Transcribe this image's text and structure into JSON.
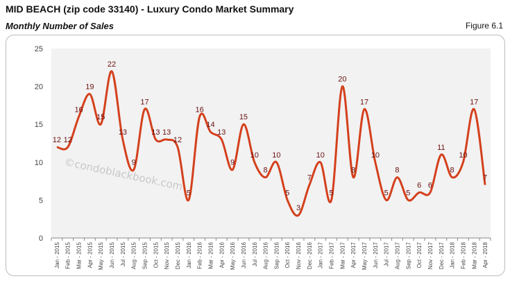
{
  "header": {
    "title": "MID BEACH (zip code 33140) - Luxury Condo Market Summary",
    "subtitle": "Monthly Number of Sales",
    "figure": "Figure 6.1"
  },
  "watermark": "©condoblackbook.com",
  "chart_data": {
    "type": "line",
    "title": "",
    "xlabel": "",
    "ylabel": "",
    "ylim": [
      0,
      25
    ],
    "yticks": [
      0,
      5,
      10,
      15,
      20,
      25
    ],
    "grid": false,
    "smooth": true,
    "line_color": "#d4401c",
    "plot_background": "#f2f2f2",
    "categories": [
      "Jan - 2015",
      "Feb - 2015",
      "Mar - 2015",
      "Apr - 2015",
      "May - 2015",
      "Jun - 2015",
      "Jul - 2015",
      "Aug - 2015",
      "Sep - 2015",
      "Oct - 2015",
      "Nov - 2015",
      "Dec - 2015",
      "Jan - 2016",
      "Feb - 2016",
      "Mar - 2016",
      "Apr - 2016",
      "May - 2016",
      "Jun - 2016",
      "Jul - 2016",
      "Aug - 2016",
      "Sep - 2016",
      "Oct - 2016",
      "Nov - 2016",
      "Dec - 2016",
      "Jan - 2017",
      "Feb - 2017",
      "Mar - 2017",
      "Apr - 2017",
      "May - 2017",
      "Jun - 2017",
      "Jul - 2017",
      "Aug - 2017",
      "Sep - 2017",
      "Oct - 2017",
      "Nov - 2017",
      "Dec - 2017",
      "Jan - 2018",
      "Feb - 2018",
      "Mar - 2018",
      "Apr - 2018"
    ],
    "values": [
      12,
      12,
      16,
      19,
      15,
      22,
      13,
      9,
      17,
      13,
      13,
      12,
      5,
      16,
      14,
      13,
      9,
      15,
      10,
      8,
      10,
      5,
      3,
      7,
      10,
      5,
      20,
      8,
      17,
      10,
      5,
      8,
      5,
      6,
      6,
      11,
      8,
      10,
      17,
      7
    ]
  }
}
